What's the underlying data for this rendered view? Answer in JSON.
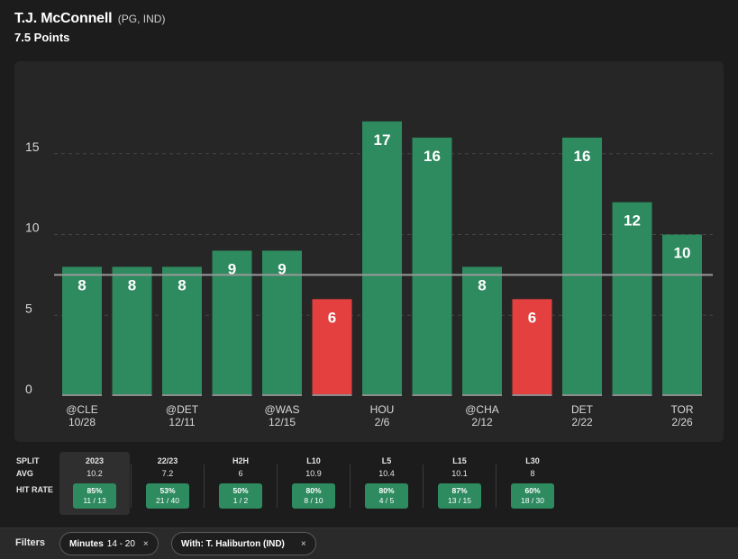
{
  "header": {
    "player_name": "T.J. McConnell",
    "player_meta": "(PG, IND)",
    "prop_line": "7.5 Points"
  },
  "colors": {
    "over": "#2e8a5f",
    "under": "#e3403f",
    "line": "#9a9a9a",
    "grid": "#444444"
  },
  "chart_data": {
    "type": "bar",
    "title": "T.J. McConnell 7.5 Points",
    "values": [
      8,
      8,
      8,
      9,
      9,
      6,
      17,
      16,
      8,
      6,
      16,
      12,
      10
    ],
    "bar_labels": [
      "8",
      "8",
      "8",
      "9",
      "9",
      "6",
      "17",
      "16",
      "8",
      "6",
      "16",
      "12",
      "10"
    ],
    "categories": [
      {
        "opp": "@CLE",
        "date": "10/28"
      },
      {
        "opp": "",
        "date": ""
      },
      {
        "opp": "@DET",
        "date": "12/11"
      },
      {
        "opp": "",
        "date": ""
      },
      {
        "opp": "@WAS",
        "date": "12/15"
      },
      {
        "opp": "",
        "date": ""
      },
      {
        "opp": "HOU",
        "date": "2/6"
      },
      {
        "opp": "",
        "date": ""
      },
      {
        "opp": "@CHA",
        "date": "2/12"
      },
      {
        "opp": "",
        "date": ""
      },
      {
        "opp": "DET",
        "date": "2/22"
      },
      {
        "opp": "",
        "date": ""
      },
      {
        "opp": "TOR",
        "date": "2/26"
      }
    ],
    "threshold": 7.5,
    "ylim": [
      0,
      19
    ],
    "yticks": [
      0,
      5,
      10,
      15
    ],
    "ytick_labels": [
      "0",
      "5",
      "10",
      "15"
    ],
    "xlabel": "",
    "ylabel": ""
  },
  "splits": {
    "row_labels": {
      "split": "SPLIT",
      "avg": "AVG",
      "hit_rate": "HIT RATE"
    },
    "columns": [
      {
        "name": "2023",
        "avg": "10.2",
        "pct": "85%",
        "frac": "11 / 13",
        "selected": true
      },
      {
        "name": "22/23",
        "avg": "7.2",
        "pct": "53%",
        "frac": "21 / 40",
        "selected": false
      },
      {
        "name": "H2H",
        "avg": "6",
        "pct": "50%",
        "frac": "1 / 2",
        "selected": false
      },
      {
        "name": "L10",
        "avg": "10.9",
        "pct": "80%",
        "frac": "8 / 10",
        "selected": false
      },
      {
        "name": "L5",
        "avg": "10.4",
        "pct": "80%",
        "frac": "4 / 5",
        "selected": false
      },
      {
        "name": "L15",
        "avg": "10.1",
        "pct": "87%",
        "frac": "13 / 15",
        "selected": false
      },
      {
        "name": "L30",
        "avg": "8",
        "pct": "60%",
        "frac": "18 / 30",
        "selected": false
      }
    ]
  },
  "filters": {
    "label": "Filters",
    "chips": [
      {
        "key": "Minutes",
        "value": "14 - 20",
        "close": "×"
      },
      {
        "key": "With: T. Haliburton (IND)",
        "value": "",
        "close": "×"
      }
    ]
  }
}
